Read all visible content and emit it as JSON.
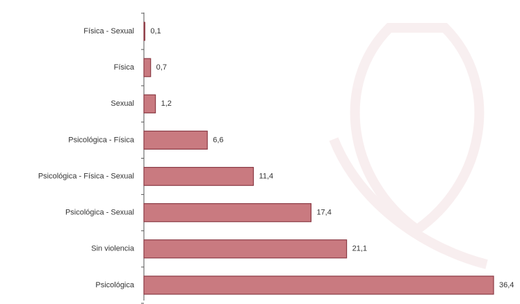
{
  "chart_data": {
    "type": "bar",
    "orientation": "horizontal",
    "categories": [
      "Física - Sexual",
      "Física",
      "Sexual",
      "Psicológica - Física",
      "Psicológica - Física - Sexual",
      "Psicológica - Sexual",
      "Sin violencia",
      "Psicológica"
    ],
    "values": [
      0.1,
      0.7,
      1.2,
      6.6,
      11.4,
      17.4,
      21.1,
      36.4
    ],
    "value_labels": [
      "0,1",
      "0,7",
      "1,2",
      "6,6",
      "11,4",
      "17,4",
      "21,1",
      "36,4"
    ],
    "color": "#c97a80"
  }
}
